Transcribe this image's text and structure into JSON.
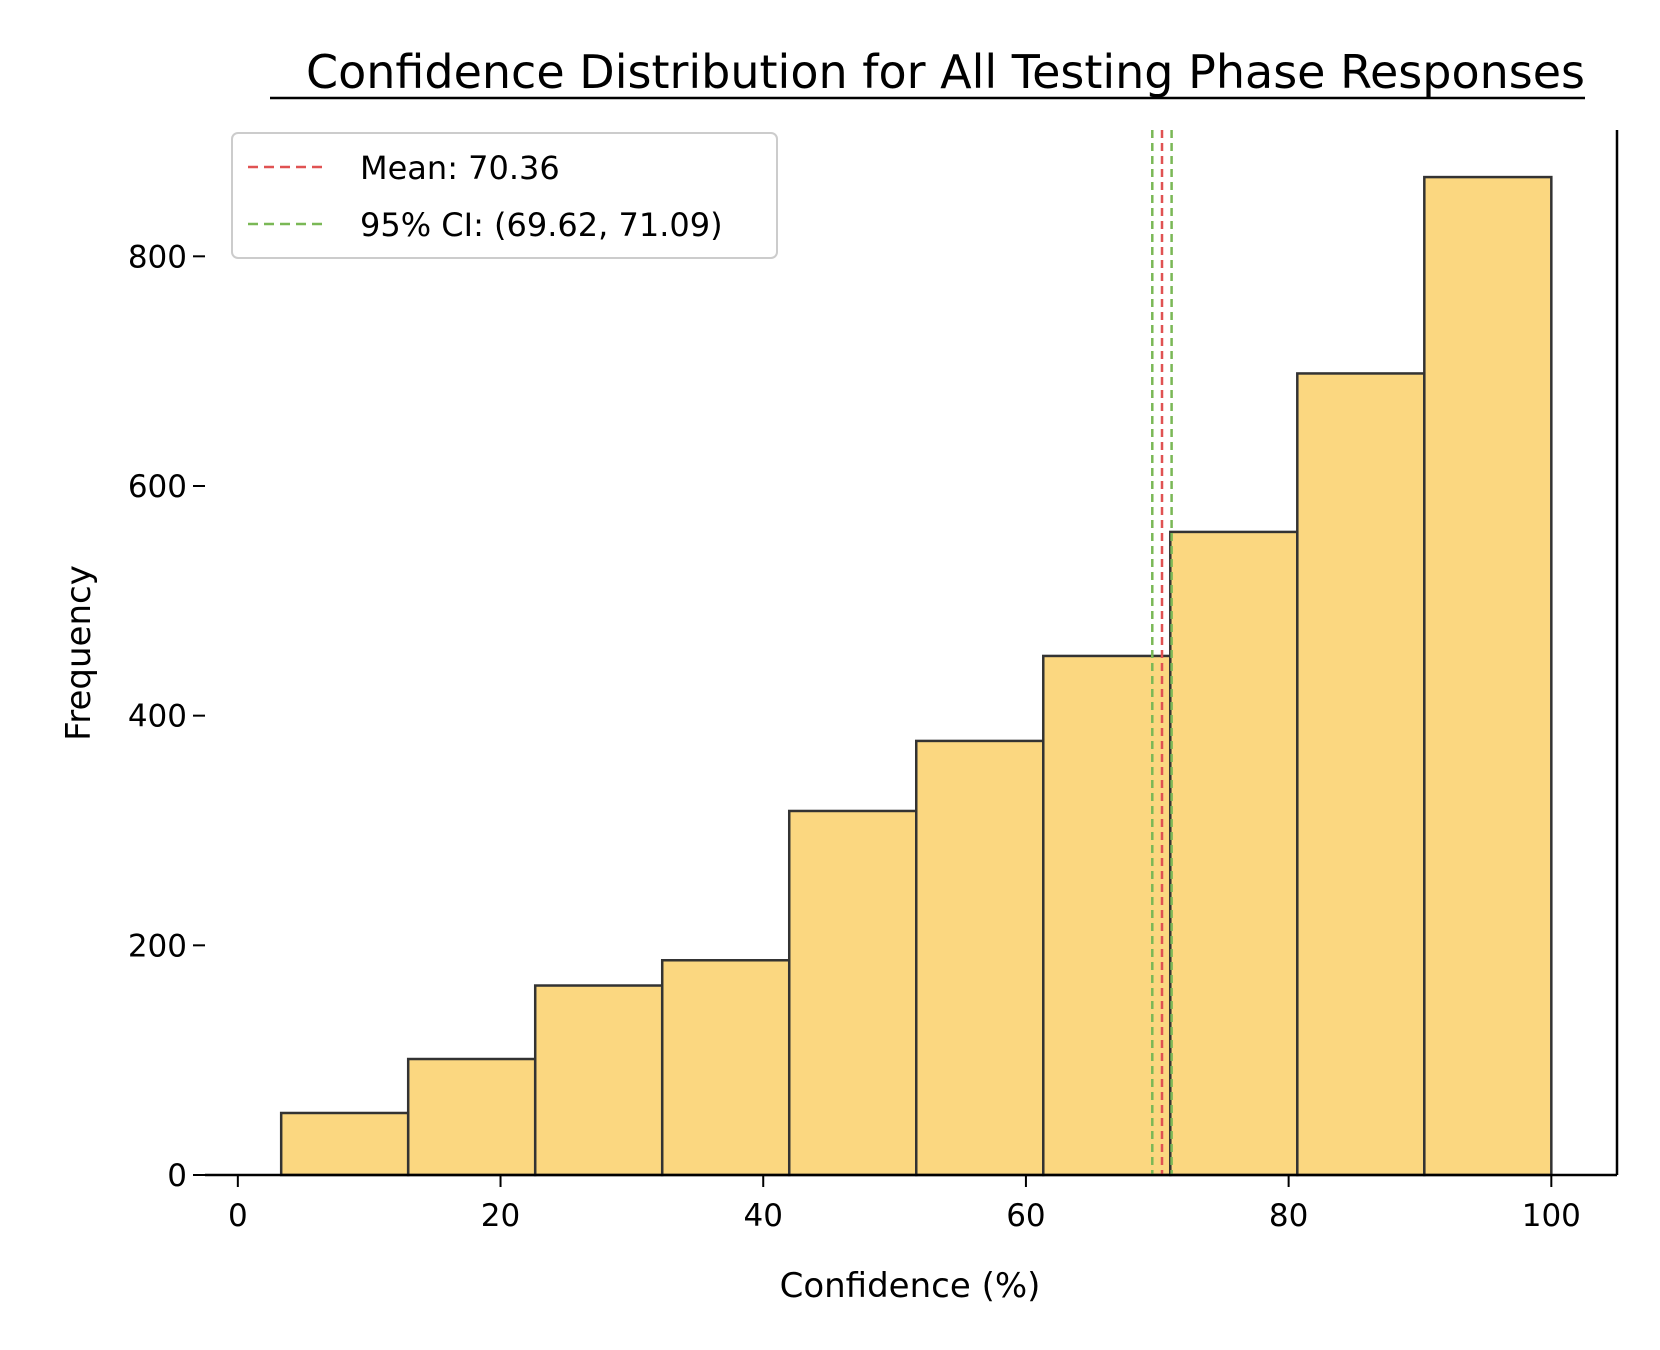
{
  "chart_data": {
    "type": "bar",
    "title": "Confidence Distribution for All Testing Phase Responses",
    "xlabel": "Confidence (%)",
    "ylabel": "Frequency",
    "xlim": [
      -2.5,
      105
    ],
    "ylim": [
      0,
      910
    ],
    "xticks": [
      0,
      20,
      40,
      60,
      80,
      100
    ],
    "yticks": [
      0,
      200,
      400,
      600,
      800
    ],
    "bins": [
      {
        "start": 3.3,
        "end": 12.97,
        "count": 54
      },
      {
        "start": 12.97,
        "end": 22.64,
        "count": 101
      },
      {
        "start": 22.64,
        "end": 32.31,
        "count": 165
      },
      {
        "start": 32.31,
        "end": 41.98,
        "count": 187
      },
      {
        "start": 41.98,
        "end": 51.65,
        "count": 317
      },
      {
        "start": 51.65,
        "end": 61.32,
        "count": 378
      },
      {
        "start": 61.32,
        "end": 70.99,
        "count": 452
      },
      {
        "start": 70.99,
        "end": 80.66,
        "count": 560
      },
      {
        "start": 80.66,
        "end": 90.33,
        "count": 698
      },
      {
        "start": 90.33,
        "end": 100.0,
        "count": 869
      }
    ],
    "bar_color": "#f9c74f",
    "bar_edge_color": "#333333",
    "mean": {
      "value": 70.36,
      "label": "Mean: 70.36",
      "color": "#e05252"
    },
    "ci": {
      "low": 69.62,
      "high": 71.09,
      "label": "95% CI: (69.62, 71.09)",
      "color": "#7ab856"
    },
    "legend_position": "upper-left",
    "grid": false
  }
}
